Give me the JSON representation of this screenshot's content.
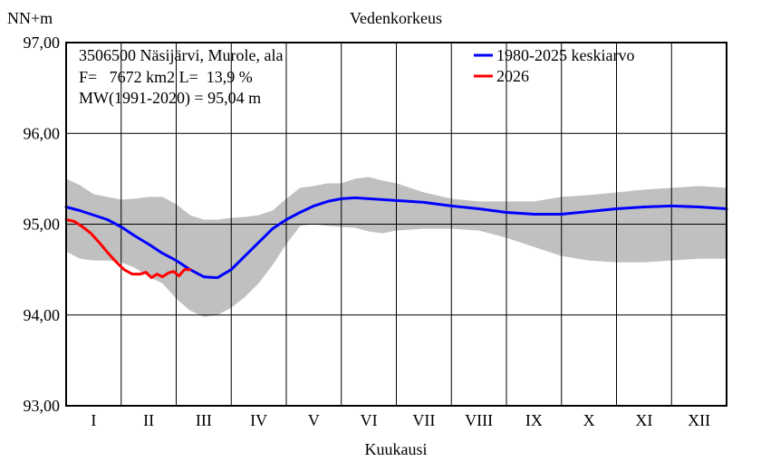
{
  "chart_data": {
    "type": "line",
    "title": "Vedenkorkeus",
    "ylabel": "NN+m",
    "xlabel": "Kuukausi",
    "ylim": [
      93.0,
      97.0
    ],
    "yticks": [
      "93,00",
      "94,00",
      "95,00",
      "96,00",
      "97,00"
    ],
    "ytick_values": [
      93,
      94,
      95,
      96,
      97
    ],
    "months": [
      "I",
      "II",
      "III",
      "IV",
      "V",
      "VI",
      "VII",
      "VIII",
      "IX",
      "X",
      "XI",
      "XII"
    ],
    "info_lines": [
      "3506500 Näsijärvi, Murole, ala",
      "F=   7672 km2 L=  13,9 %",
      "MW(1991-2020) = 95,04 m"
    ],
    "grid": true,
    "legend_position": "top-right",
    "colors": {
      "band": "#c0c0c0",
      "mean": "#0000ff",
      "current": "#ff0000",
      "zero_line": "#000000"
    },
    "band": {
      "x": [
        0.0,
        0.25,
        0.5,
        0.75,
        1.0,
        1.25,
        1.5,
        1.75,
        2.0,
        2.25,
        2.5,
        2.75,
        3.0,
        3.25,
        3.5,
        3.75,
        4.0,
        4.25,
        4.5,
        4.75,
        5.0,
        5.25,
        5.5,
        5.75,
        6.0,
        6.5,
        7.0,
        7.5,
        8.0,
        8.5,
        9.0,
        9.5,
        10.0,
        10.5,
        11.0,
        11.5,
        12.0
      ],
      "max": [
        95.5,
        95.43,
        95.33,
        95.3,
        95.27,
        95.28,
        95.3,
        95.3,
        95.22,
        95.1,
        95.05,
        95.05,
        95.07,
        95.08,
        95.1,
        95.15,
        95.28,
        95.4,
        95.42,
        95.45,
        95.45,
        95.5,
        95.52,
        95.48,
        95.45,
        95.35,
        95.28,
        95.25,
        95.25,
        95.25,
        95.3,
        95.32,
        95.35,
        95.38,
        95.4,
        95.42,
        95.4
      ],
      "min": [
        94.7,
        94.62,
        94.6,
        94.6,
        94.58,
        94.52,
        94.42,
        94.35,
        94.18,
        94.05,
        93.98,
        94.0,
        94.08,
        94.2,
        94.35,
        94.55,
        94.78,
        94.98,
        95.0,
        94.98,
        94.97,
        94.96,
        94.92,
        94.9,
        94.93,
        94.95,
        94.95,
        94.93,
        94.85,
        94.75,
        94.65,
        94.6,
        94.58,
        94.58,
        94.6,
        94.62,
        94.62
      ]
    },
    "series": [
      {
        "name": "1980-2025 keskiarvo",
        "x": [
          0.0,
          0.25,
          0.5,
          0.75,
          1.0,
          1.25,
          1.5,
          1.75,
          2.0,
          2.25,
          2.5,
          2.75,
          3.0,
          3.25,
          3.5,
          3.75,
          4.0,
          4.25,
          4.5,
          4.75,
          5.0,
          5.25,
          5.5,
          5.75,
          6.0,
          6.5,
          7.0,
          7.5,
          8.0,
          8.5,
          9.0,
          9.5,
          10.0,
          10.5,
          11.0,
          11.5,
          12.0
        ],
        "y": [
          95.19,
          95.15,
          95.1,
          95.05,
          94.97,
          94.87,
          94.78,
          94.68,
          94.6,
          94.5,
          94.42,
          94.41,
          94.5,
          94.65,
          94.8,
          94.95,
          95.05,
          95.13,
          95.2,
          95.25,
          95.28,
          95.29,
          95.28,
          95.27,
          95.26,
          95.24,
          95.2,
          95.17,
          95.13,
          95.11,
          95.11,
          95.14,
          95.17,
          95.19,
          95.2,
          95.19,
          95.17
        ]
      },
      {
        "name": "2026",
        "x": [
          0.0,
          0.15,
          0.3,
          0.45,
          0.6,
          0.75,
          0.9,
          1.05,
          1.2,
          1.35,
          1.45,
          1.55,
          1.65,
          1.75,
          1.85,
          1.95,
          2.05,
          2.15,
          2.25
        ],
        "y": [
          95.05,
          95.03,
          94.97,
          94.9,
          94.8,
          94.69,
          94.59,
          94.5,
          94.45,
          94.45,
          94.47,
          94.41,
          94.45,
          94.42,
          94.46,
          94.48,
          94.43,
          94.5,
          94.5
        ]
      }
    ]
  }
}
